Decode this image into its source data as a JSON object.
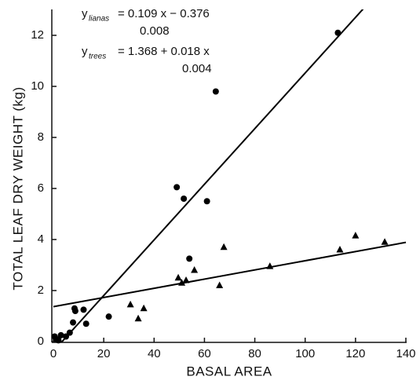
{
  "chart_data": {
    "type": "scatter",
    "x_label": "BASAL AREA",
    "y_label": "TOTAL LEAF DRY WEIGHT (kg)",
    "xlim": [
      0,
      140
    ],
    "ylim": [
      0,
      13
    ],
    "xticks": [
      0,
      20,
      40,
      60,
      80,
      100,
      120,
      140
    ],
    "yticks": [
      0,
      2,
      4,
      6,
      8,
      10,
      12
    ],
    "grid": false,
    "series": [
      {
        "name": "lianas",
        "color": "#000000",
        "marker": "circle",
        "x": [
          113,
          64.5,
          49,
          51.8,
          61,
          54,
          22,
          12,
          8.4,
          8.7,
          13,
          7.8,
          6.5,
          5,
          3,
          1.2,
          2,
          0.5
        ],
        "values": [
          12.1,
          9.8,
          6.05,
          5.6,
          5.5,
          3.25,
          0.98,
          1.25,
          1.3,
          1.2,
          0.7,
          0.75,
          0.35,
          0.2,
          0.25,
          0.1,
          0.05,
          0.2
        ],
        "fit": {
          "slope": 0.109,
          "intercept": -0.376
        }
      },
      {
        "name": "trees",
        "color": "#000000",
        "marker": "triangle",
        "x": [
          120,
          113.8,
          131.6,
          67.7,
          56,
          49.6,
          51,
          52.7,
          86,
          66,
          30.6,
          35.9,
          33.7
        ],
        "values": [
          4.15,
          3.6,
          3.9,
          3.7,
          2.8,
          2.5,
          2.3,
          2.4,
          2.95,
          2.2,
          1.45,
          1.3,
          0.9
        ],
        "fit": {
          "slope": 0.018,
          "intercept": 1.368
        }
      }
    ],
    "annotations": [
      {
        "text": "y",
        "subscript": "lianas",
        "equation": "= 0.109 x − 0.376",
        "error": "0.008"
      },
      {
        "text": "y",
        "subscript": "trees",
        "equation": "= 1.368 + 0.018 x",
        "error": "0.004"
      }
    ]
  }
}
